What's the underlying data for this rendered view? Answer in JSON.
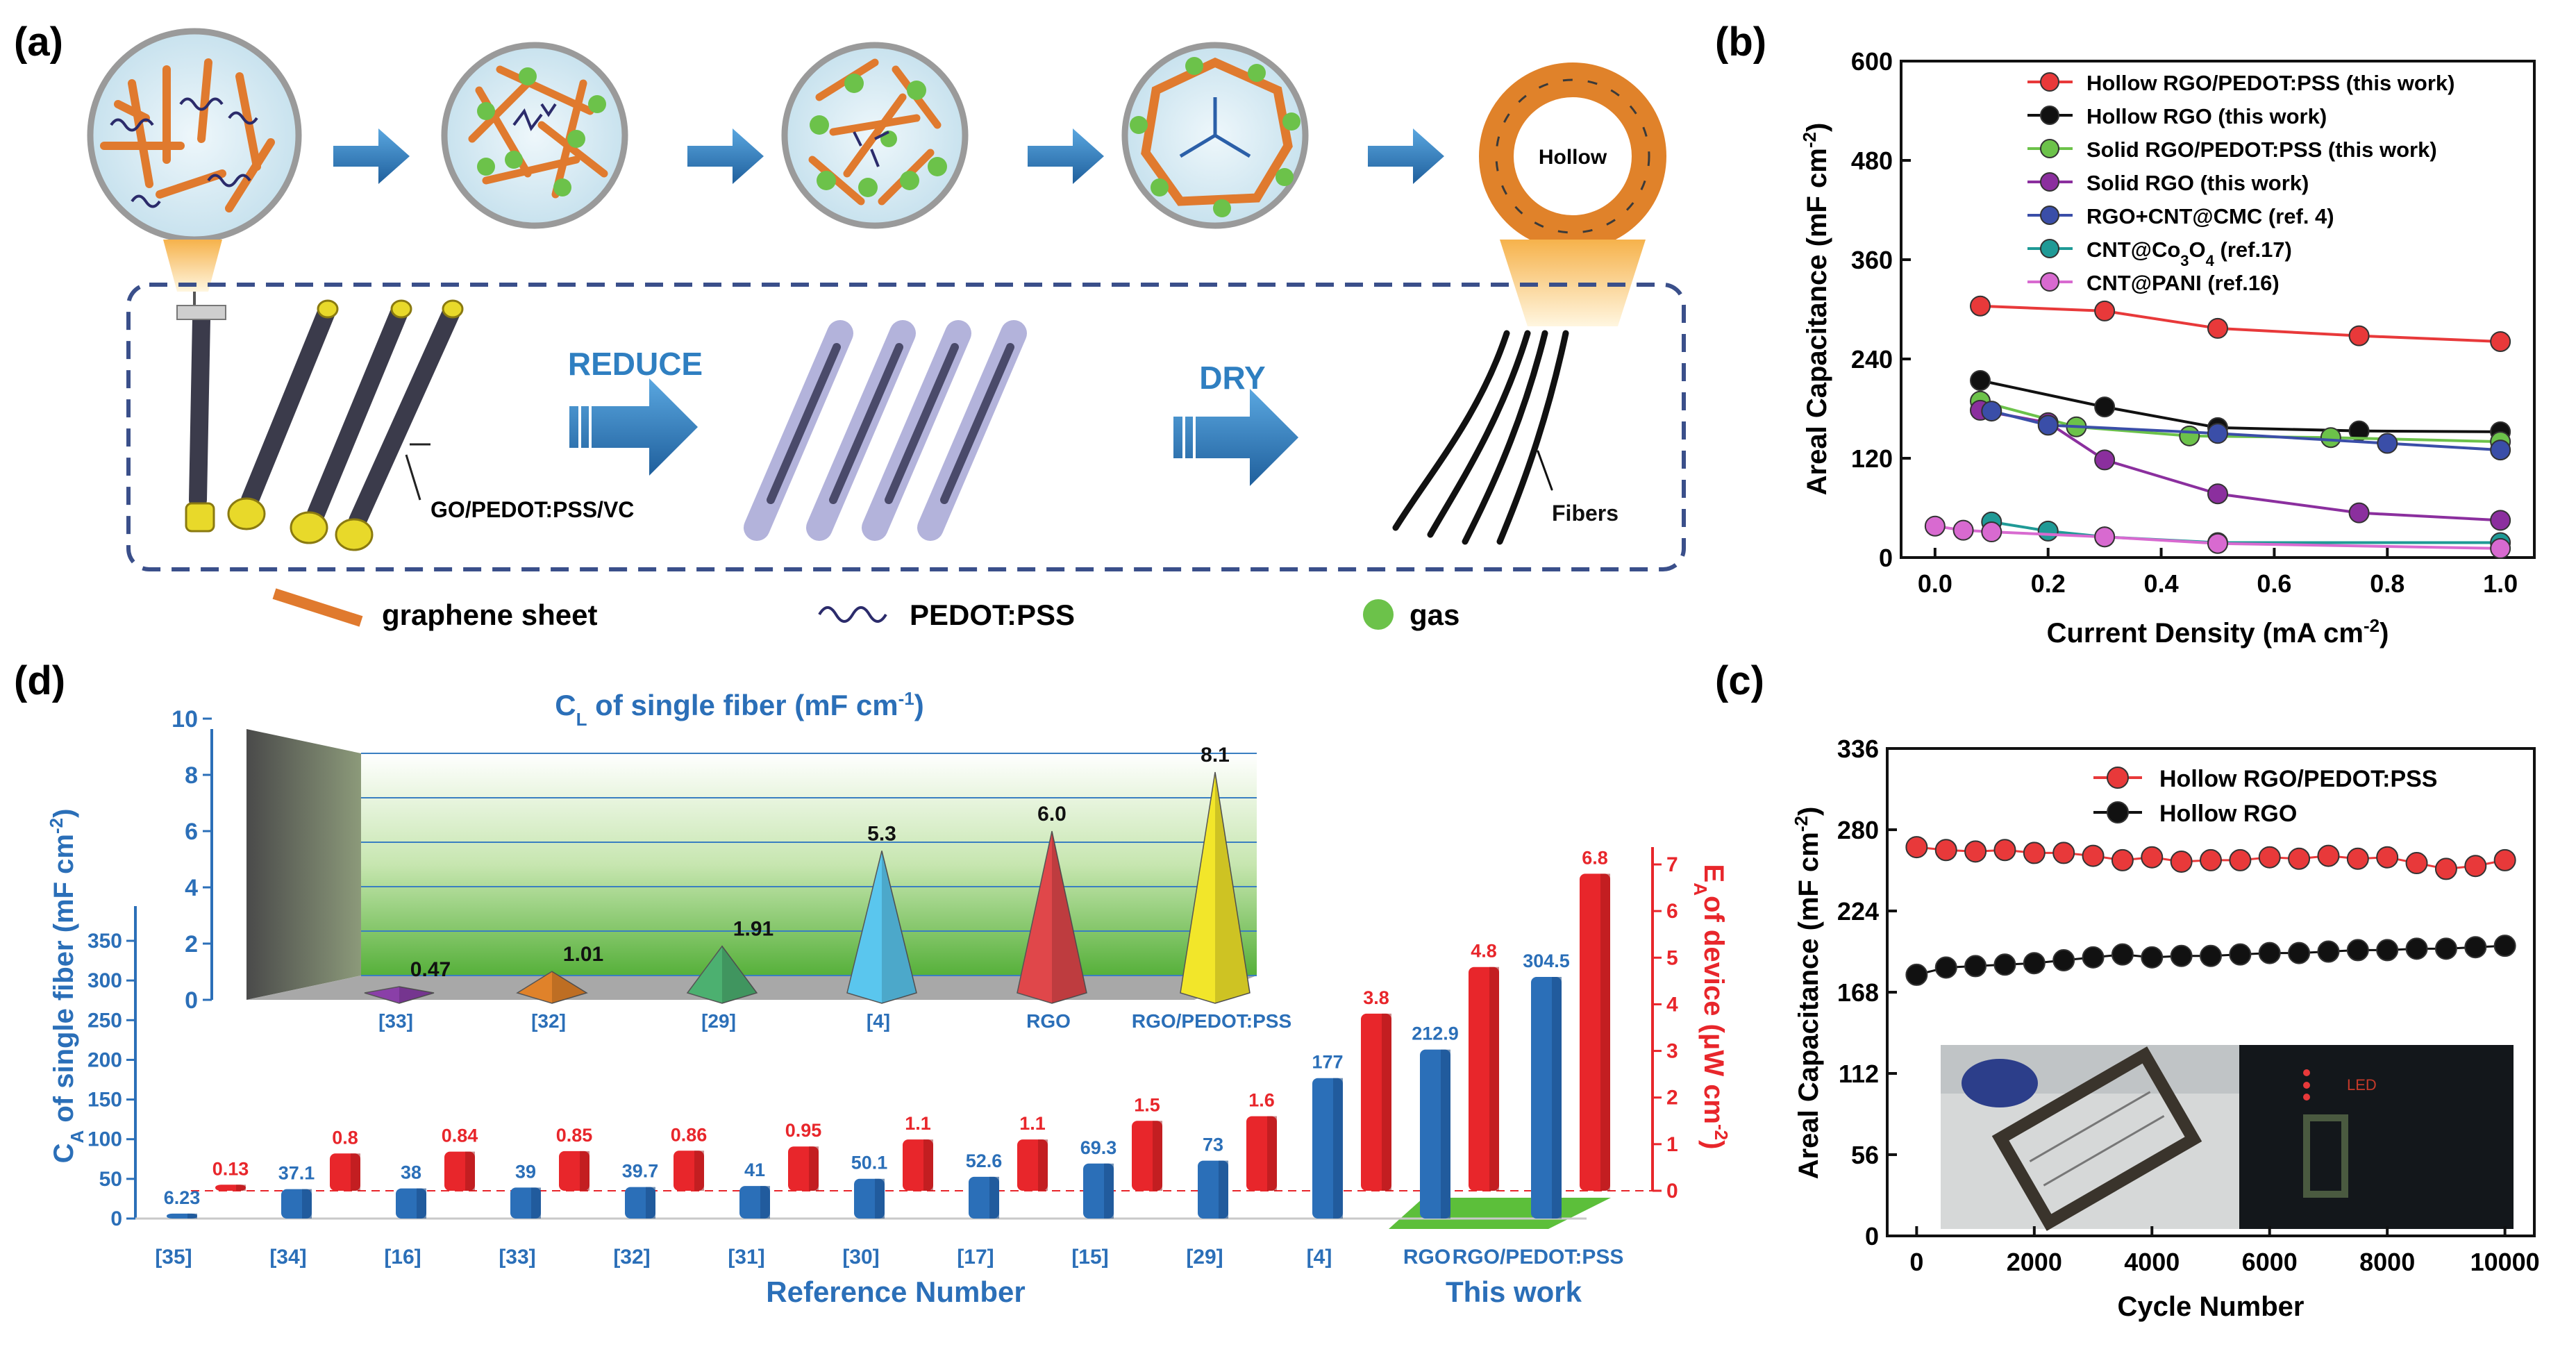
{
  "panel_labels": {
    "a": "(a)",
    "b": "(b)",
    "c": "(c)",
    "d": "(d)"
  },
  "panel_a": {
    "hollow_label": "Hollow",
    "reduce_label": "REDUCE",
    "dry_label": "DRY",
    "precursor_label": "GO/PEDOT:PSS/VC",
    "fibers_label": "Fibers",
    "legend": {
      "graphene": "graphene sheet",
      "pedot": "PEDOT:PSS",
      "gas": "gas"
    },
    "colors": {
      "graphene": "#e07a2e",
      "gas": "#6cc24a",
      "pedot": "#2b2b6b",
      "arrow": "#2f7fc1",
      "dash": "#3a4f8a"
    }
  },
  "chart_data": [
    {
      "panel": "b",
      "type": "line",
      "xlabel": "Current Density (mA cm",
      "xlabel_sup": "-2",
      "xlabel_end": ")",
      "ylabel": "Areal Capacitance (mF cm",
      "ylabel_sup": "-2",
      "ylabel_end": ")",
      "xlim": [
        -0.06,
        1.06
      ],
      "ylim": [
        0,
        600
      ],
      "xticks": [
        "0.0",
        "0.2",
        "0.4",
        "0.6",
        "0.8",
        "1.0"
      ],
      "xtick_values": [
        0,
        0.2,
        0.4,
        0.6,
        0.8,
        1.0
      ],
      "yticks": [
        "0",
        "120",
        "240",
        "360",
        "480",
        "600"
      ],
      "ytick_values": [
        0,
        120,
        240,
        360,
        480,
        600
      ],
      "legend_placement": "top-right",
      "series": [
        {
          "name": "Hollow RGO/PEDOT:PSS (this work)",
          "color": "#e8393a",
          "x": [
            0.08,
            0.3,
            0.5,
            0.75,
            1.0
          ],
          "y": [
            304,
            298,
            277,
            268,
            261
          ]
        },
        {
          "name": "Hollow RGO (this work)",
          "color": "#111111",
          "x": [
            0.08,
            0.3,
            0.5,
            0.75,
            1.0
          ],
          "y": [
            214,
            182,
            157,
            153,
            152
          ]
        },
        {
          "name": "Solid RGO/PEDOT:PSS (this work)",
          "color": "#6cc24a",
          "x": [
            0.08,
            0.25,
            0.45,
            0.7,
            1.0
          ],
          "y": [
            189,
            158,
            147,
            145,
            140
          ]
        },
        {
          "name": "Solid RGO (this work)",
          "color": "#8b2f9e",
          "x": [
            0.08,
            0.2,
            0.3,
            0.5,
            0.75,
            1.0
          ],
          "y": [
            178,
            163,
            118,
            77,
            54,
            45
          ]
        },
        {
          "name": "RGO+CNT@CMC (ref. 4)",
          "color": "#3a4ea8",
          "x": [
            0.1,
            0.2,
            0.5,
            0.8,
            1.0
          ],
          "y": [
            177,
            160,
            150,
            138,
            130
          ]
        },
        {
          "name": "CNT@Co3O4 (ref.17)",
          "color": "#1f9a96",
          "x": [
            0.1,
            0.2,
            0.3,
            0.5,
            1.0
          ],
          "y": [
            43,
            32,
            25,
            18,
            18
          ]
        },
        {
          "name": "CNT@PANI (ref.16)",
          "color": "#d86ad0",
          "x": [
            0.0,
            0.05,
            0.1,
            0.3,
            0.5,
            1.0
          ],
          "y": [
            38,
            33,
            31,
            25,
            17,
            11
          ]
        }
      ]
    },
    {
      "panel": "c",
      "type": "scatter",
      "xlabel": "Cycle Number",
      "ylabel": "Areal Capacitance (mF cm",
      "ylabel_sup": "-2",
      "ylabel_end": ")",
      "xlim": [
        -500,
        10500
      ],
      "ylim": [
        0,
        336
      ],
      "xticks": [
        "0",
        "2000",
        "4000",
        "6000",
        "8000",
        "10000"
      ],
      "xtick_values": [
        0,
        2000,
        4000,
        6000,
        8000,
        10000
      ],
      "yticks": [
        "0",
        "56",
        "112",
        "168",
        "224",
        "280",
        "336"
      ],
      "ytick_values": [
        0,
        56,
        112,
        168,
        224,
        280,
        336
      ],
      "legend_placement": "top",
      "series": [
        {
          "name": "Hollow RGO/PEDOT:PSS",
          "color": "#e8393a",
          "x": [
            0,
            500,
            1000,
            1500,
            2000,
            2500,
            3000,
            3500,
            4000,
            4500,
            5000,
            5500,
            6000,
            6500,
            7000,
            7500,
            8000,
            8500,
            9000,
            9500,
            10000
          ],
          "y": [
            268,
            266,
            265,
            266,
            264,
            264,
            262,
            259,
            261,
            258,
            259,
            259,
            261,
            260,
            262,
            260,
            261,
            257,
            253,
            255,
            259
          ]
        },
        {
          "name": "Hollow RGO",
          "color": "#111111",
          "x": [
            0,
            500,
            1000,
            1500,
            2000,
            2500,
            3000,
            3500,
            4000,
            4500,
            5000,
            5500,
            6000,
            6500,
            7000,
            7500,
            8000,
            8500,
            9000,
            9500,
            10000
          ],
          "y": [
            180,
            185,
            186,
            187,
            188,
            190,
            192,
            194,
            192,
            193,
            193,
            194,
            195,
            195,
            196,
            197,
            197,
            198,
            198,
            199,
            200
          ]
        }
      ],
      "photo_text": "LED"
    },
    {
      "panel": "d",
      "type": "bar",
      "xlabel": "Reference Number",
      "this_work_label": "This work",
      "ylabel_left": "C",
      "ylabel_left_sub": "A",
      "ylabel_left_rest": " of single fiber (mF cm",
      "ylabel_left_sup": "-2",
      "ylabel_left_end": ")",
      "ylabel_right": "E",
      "ylabel_right_sub": "A",
      "ylabel_right_rest": "of device (μW cm",
      "ylabel_right_sup": "-2",
      "ylabel_right_end": ")",
      "left_ylim": [
        0,
        350
      ],
      "left_yticks": [
        "0",
        "50",
        "100",
        "150",
        "200",
        "250",
        "300",
        "350"
      ],
      "left_ytick_values": [
        0,
        50,
        100,
        150,
        200,
        250,
        300,
        350
      ],
      "right_ylim": [
        0,
        7
      ],
      "right_yticks": [
        "0",
        "1",
        "2",
        "3",
        "4",
        "5",
        "6",
        "7"
      ],
      "right_ytick_values": [
        0,
        1,
        2,
        3,
        4,
        5,
        6,
        7
      ],
      "categories": [
        "[35]",
        "[34]",
        "[16]",
        "[33]",
        "[32]",
        "[31]",
        "[30]",
        "[17]",
        "[15]",
        "[29]",
        "[4]",
        "RGO",
        "RGO/PEDOT:PSS"
      ],
      "series": [
        {
          "name": "C_A of single fiber",
          "color": "#2b6fb8",
          "values": [
            6.23,
            37.1,
            38,
            39,
            39.7,
            41,
            50.1,
            52.6,
            69.3,
            73,
            177,
            212.9,
            304.5
          ],
          "labels": [
            "6.23",
            "37.1",
            "38",
            "39",
            "39.7",
            "41",
            "50.1",
            "52.6",
            "69.3",
            "73",
            "177",
            "212.9",
            "304.5"
          ]
        },
        {
          "name": "E_A of device",
          "color": "#e8262b",
          "values": [
            0.13,
            0.8,
            0.84,
            0.85,
            0.86,
            0.95,
            1.1,
            1.1,
            1.5,
            1.6,
            3.8,
            4.8,
            6.8
          ],
          "labels": [
            "0.13",
            "0.8",
            "0.84",
            "0.85",
            "0.86",
            "0.95",
            "1.1",
            "1.1",
            "1.5",
            "1.6",
            "3.8",
            "4.8",
            "6.8"
          ]
        }
      ],
      "inset": {
        "type": "bar",
        "title": "C",
        "title_sub": "L",
        "title_rest": " of single fiber (mF cm",
        "title_sup": "-1",
        "title_end": ")",
        "ylim": [
          0,
          10
        ],
        "yticks": [
          "0",
          "2",
          "4",
          "6",
          "8",
          "10"
        ],
        "ytick_values": [
          0,
          2,
          4,
          6,
          8,
          10
        ],
        "categories": [
          "[33]",
          "[32]",
          "[29]",
          "[4]",
          "RGO",
          "RGO/PEDOT:PSS"
        ],
        "values": [
          0.47,
          1.01,
          1.91,
          5.3,
          6.0,
          8.1
        ],
        "labels": [
          "0.47",
          "1.01",
          "1.91",
          "5.3",
          "6.0",
          "8.1"
        ],
        "colors": [
          "#8a3fa8",
          "#e0822a",
          "#4cb070",
          "#5ac6ee",
          "#e0474a",
          "#f2e62a"
        ]
      }
    }
  ]
}
